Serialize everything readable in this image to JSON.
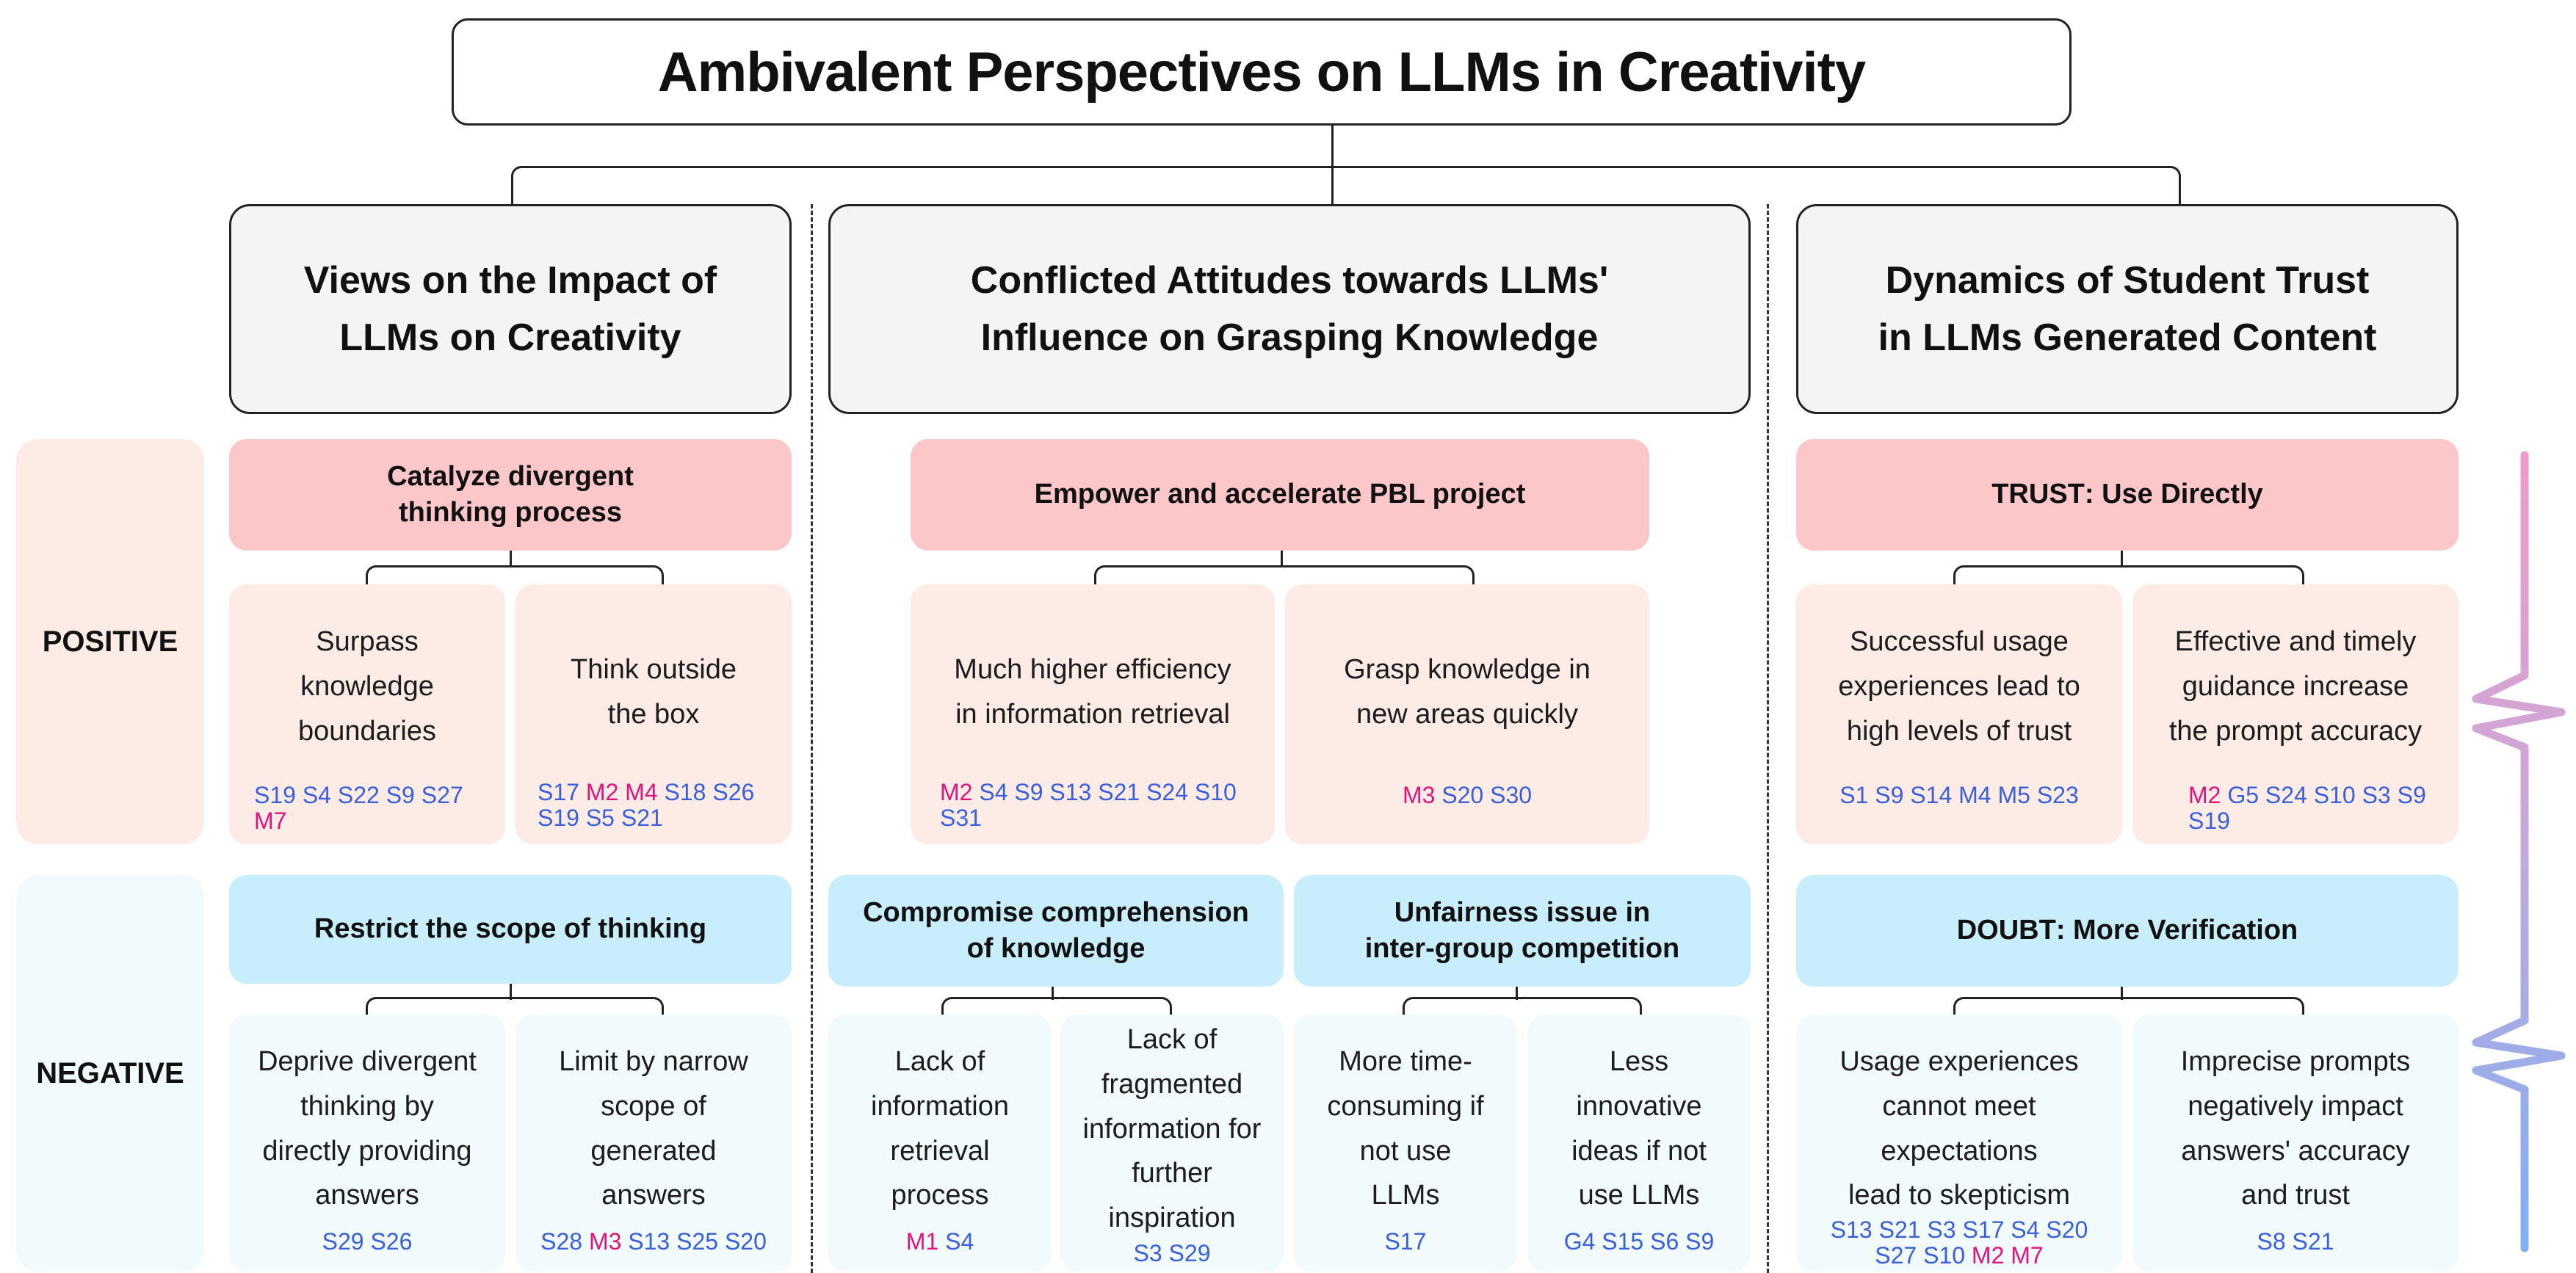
{
  "title": "Ambivalent Perspectives on LLMs in Creativity",
  "row_labels": {
    "positive": "POSITIVE",
    "negative": "NEGATIVE"
  },
  "sections": [
    {
      "heading": [
        "Views on the Impact of",
        "LLMs on Creativity"
      ],
      "positive": {
        "category": [
          "Catalyze divergent",
          "thinking process"
        ],
        "items": [
          {
            "text": [
              "Surpass",
              "knowledge",
              "boundaries"
            ],
            "refs": [
              [
                "S19",
                "s"
              ],
              [
                "S4",
                "s"
              ],
              [
                "S22",
                "s"
              ],
              [
                "S9",
                "s"
              ],
              [
                "S27",
                "s"
              ],
              [
                "M7",
                "m"
              ]
            ]
          },
          {
            "text": [
              "Think outside",
              "the box"
            ],
            "refs": [
              [
                "S17",
                "s"
              ],
              [
                "M2",
                "m"
              ],
              [
                "M4",
                "m"
              ],
              [
                "S18",
                "s"
              ],
              [
                "S26",
                "s"
              ],
              [
                "S19",
                "s"
              ],
              [
                "S5",
                "s"
              ],
              [
                "S21",
                "s"
              ]
            ]
          }
        ]
      },
      "negative": {
        "categories": [
          {
            "label": [
              "Restrict the scope of thinking"
            ],
            "items": [
              {
                "text": [
                  "Deprive divergent",
                  "thinking by",
                  "directly providing",
                  "answers"
                ],
                "refs": [
                  [
                    "S29",
                    "s"
                  ],
                  [
                    "S26",
                    "s"
                  ]
                ]
              },
              {
                "text": [
                  "Limit by narrow",
                  "scope of",
                  "generated",
                  "answers"
                ],
                "refs": [
                  [
                    "S28",
                    "s"
                  ],
                  [
                    "M3",
                    "m"
                  ],
                  [
                    "S13",
                    "s"
                  ],
                  [
                    "S25",
                    "s"
                  ],
                  [
                    "S20",
                    "s"
                  ]
                ]
              }
            ]
          }
        ]
      }
    },
    {
      "heading": [
        "Conflicted Attitudes towards LLMs'",
        "Influence on Grasping Knowledge"
      ],
      "positive": {
        "category": [
          "Empower and accelerate PBL project"
        ],
        "items": [
          {
            "text": [
              "Much higher efficiency",
              "in information retrieval"
            ],
            "refs": [
              [
                "M2",
                "m"
              ],
              [
                "S4",
                "s"
              ],
              [
                "S9",
                "s"
              ],
              [
                "S13",
                "s"
              ],
              [
                "S21",
                "s"
              ],
              [
                "S24",
                "s"
              ],
              [
                "S10",
                "s"
              ],
              [
                "S31",
                "s"
              ]
            ]
          },
          {
            "text": [
              "Grasp knowledge in",
              "new areas quickly"
            ],
            "refs": [
              [
                "M3",
                "m"
              ],
              [
                "S20",
                "s"
              ],
              [
                "S30",
                "s"
              ]
            ]
          }
        ]
      },
      "negative": {
        "categories": [
          {
            "label": [
              "Compromise comprehension",
              "of knowledge"
            ],
            "items": [
              {
                "text": [
                  "Lack of",
                  "information",
                  "retrieval",
                  "process"
                ],
                "refs": [
                  [
                    "M1",
                    "m"
                  ],
                  [
                    "S4",
                    "s"
                  ]
                ]
              },
              {
                "text": [
                  "Lack of",
                  "fragmented",
                  "information for",
                  "further",
                  "inspiration"
                ],
                "refs": [
                  [
                    "S3",
                    "s"
                  ],
                  [
                    "S29",
                    "s"
                  ]
                ]
              }
            ]
          },
          {
            "label": [
              "Unfairness issue in",
              "inter-group competition"
            ],
            "items": [
              {
                "text": [
                  "More time-",
                  "consuming if",
                  "not use",
                  "LLMs"
                ],
                "refs": [
                  [
                    "S17",
                    "s"
                  ]
                ]
              },
              {
                "text": [
                  "Less",
                  "innovative",
                  "ideas if not",
                  "use LLMs"
                ],
                "refs": [
                  [
                    "G4",
                    "s"
                  ],
                  [
                    "S15",
                    "s"
                  ],
                  [
                    "S6",
                    "s"
                  ],
                  [
                    "S9",
                    "s"
                  ]
                ]
              }
            ]
          }
        ]
      }
    },
    {
      "heading": [
        "Dynamics of Student Trust",
        "in LLMs Generated Content"
      ],
      "positive": {
        "category_strong": "TRUST",
        "category": [
          ": Use Directly"
        ],
        "items": [
          {
            "text": [
              "Successful usage",
              "experiences lead to",
              "high levels of trust"
            ],
            "refs": [
              [
                "S1",
                "s"
              ],
              [
                "S9",
                "s"
              ],
              [
                "S14",
                "s"
              ],
              [
                "M4",
                "s"
              ],
              [
                "M5",
                "s"
              ],
              [
                "S23",
                "s"
              ]
            ]
          },
          {
            "text": [
              "Effective and timely",
              "guidance increase",
              "the prompt accuracy"
            ],
            "refs": [
              [
                "M2",
                "m"
              ],
              [
                "G5",
                "s"
              ],
              [
                "S24",
                "s"
              ],
              [
                "S10",
                "s"
              ],
              [
                "S3",
                "s"
              ],
              [
                "S9",
                "s"
              ],
              [
                "S19",
                "s"
              ]
            ]
          }
        ]
      },
      "negative": {
        "categories": [
          {
            "label_strong": "DOUBT",
            "label": [
              ": More Verification"
            ],
            "items": [
              {
                "text": [
                  "Usage experiences",
                  "cannot meet",
                  "expectations",
                  "lead to skepticism"
                ],
                "refs": [
                  [
                    "S13",
                    "s"
                  ],
                  [
                    "S21",
                    "s"
                  ],
                  [
                    "S3",
                    "s"
                  ],
                  [
                    "S17",
                    "s"
                  ],
                  [
                    "S4",
                    "s"
                  ],
                  [
                    "S20",
                    "s"
                  ],
                  [
                    "S27",
                    "s"
                  ],
                  [
                    "S10",
                    "s"
                  ],
                  [
                    "M2",
                    "m"
                  ],
                  [
                    "M7",
                    "m"
                  ]
                ]
              },
              {
                "text": [
                  "Imprecise prompts",
                  "negatively impact",
                  "answers' accuracy",
                  "and trust"
                ],
                "refs": [
                  [
                    "S8",
                    "s"
                  ],
                  [
                    "S21",
                    "s"
                  ]
                ]
              }
            ]
          }
        ]
      }
    }
  ],
  "colors": {
    "positive_bg": "#fdece5",
    "positive_category": "#fcc7c9",
    "negative_bg": "#f1fafd",
    "negative_category": "#c8edfb",
    "ref_student": "#3a5fd9",
    "ref_mentor": "#e0147c",
    "scale_top": "#ee9cc8",
    "scale_bottom": "#7fb0f2"
  }
}
